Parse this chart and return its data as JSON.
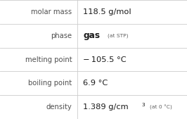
{
  "rows": [
    {
      "label": "molar mass",
      "type": "simple",
      "value": "118.5 g/mol"
    },
    {
      "label": "phase",
      "type": "phase",
      "main": "gas",
      "sub": "(at STP)"
    },
    {
      "label": "melting point",
      "type": "simple",
      "value": "− 105.5 °C"
    },
    {
      "label": "boiling point",
      "type": "simple",
      "value": "6.9 °C"
    },
    {
      "label": "density",
      "type": "density",
      "main": "1.389 g/cm",
      "sup": "3",
      "sub": "(at 0 °C)"
    }
  ],
  "label_color": "#505050",
  "value_color": "#1a1a1a",
  "sub_color": "#606060",
  "line_color": "#cccccc",
  "background_color": "#ffffff",
  "col_split": 0.415,
  "label_fontsize": 7.2,
  "value_fontsize": 8.2,
  "sub_fontsize": 5.4
}
